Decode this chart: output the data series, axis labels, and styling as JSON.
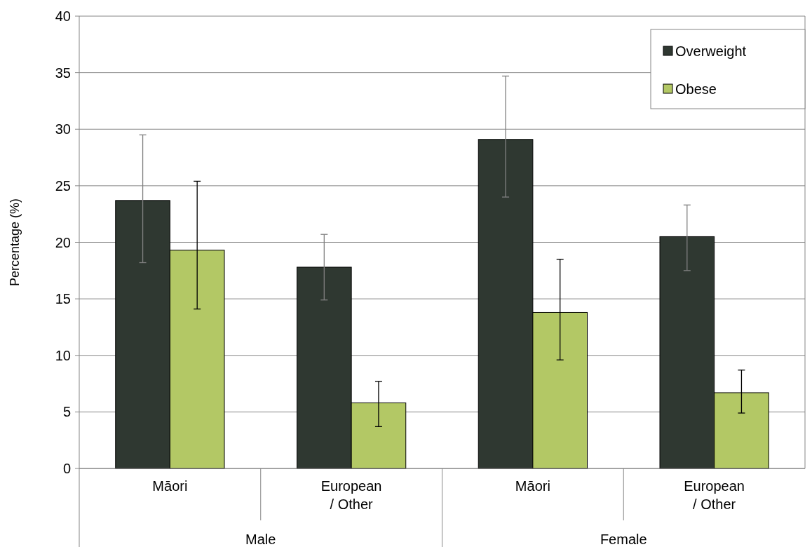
{
  "chart_data": {
    "type": "bar",
    "ylabel": "Percentage (%)",
    "categories": [
      "Māori",
      "European / Other",
      "Māori",
      "European / Other"
    ],
    "annotations": [
      "Male",
      "Female"
    ],
    "series": [
      {
        "name": "Overweight",
        "color": "#2f3831",
        "values": [
          23.7,
          17.8,
          29.1,
          20.5
        ],
        "errors": [
          [
            18.2,
            29.5
          ],
          [
            14.9,
            20.7
          ],
          [
            24.0,
            34.7
          ],
          [
            17.5,
            23.3
          ]
        ]
      },
      {
        "name": "Obese",
        "color": "#b3c865",
        "values": [
          19.3,
          5.8,
          13.8,
          6.7
        ],
        "errors": [
          [
            14.1,
            25.4
          ],
          [
            3.7,
            7.7
          ],
          [
            9.6,
            18.5
          ],
          [
            4.9,
            8.7
          ]
        ]
      }
    ],
    "ylim": [
      0,
      40
    ],
    "yticks": [
      0,
      5,
      10,
      15,
      20,
      25,
      30,
      35,
      40
    ],
    "grid": "y",
    "legend": "top right"
  }
}
